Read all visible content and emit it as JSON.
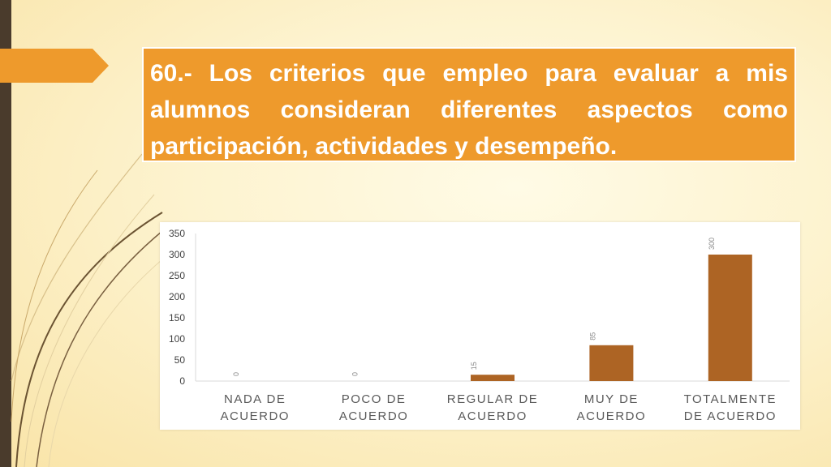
{
  "slide": {
    "title": "60.- Los criterios que empleo para evaluar a mis alumnos consideran diferentes aspectos como participación, actividades y desempeño."
  },
  "colors": {
    "accent": "#ee9a2c",
    "bar": "#ad6424",
    "left_bar": "#4a3b2c",
    "swoosh": "#6b5332"
  },
  "chart_data": {
    "type": "bar",
    "categories": [
      [
        "NADA DE",
        "ACUERDO"
      ],
      [
        "POCO DE",
        "ACUERDO"
      ],
      [
        "REGULAR DE",
        "ACUERDO"
      ],
      [
        "MUY DE",
        "ACUERDO"
      ],
      [
        "TOTALMENTE",
        "DE ACUERDO"
      ]
    ],
    "values": [
      0,
      0,
      15,
      85,
      300
    ],
    "data_labels": [
      "0",
      "0",
      "15",
      "85",
      "300"
    ],
    "yticks": [
      0,
      50,
      100,
      150,
      200,
      250,
      300,
      350
    ],
    "ylim": [
      0,
      350
    ],
    "grid": false,
    "legend": "none"
  }
}
